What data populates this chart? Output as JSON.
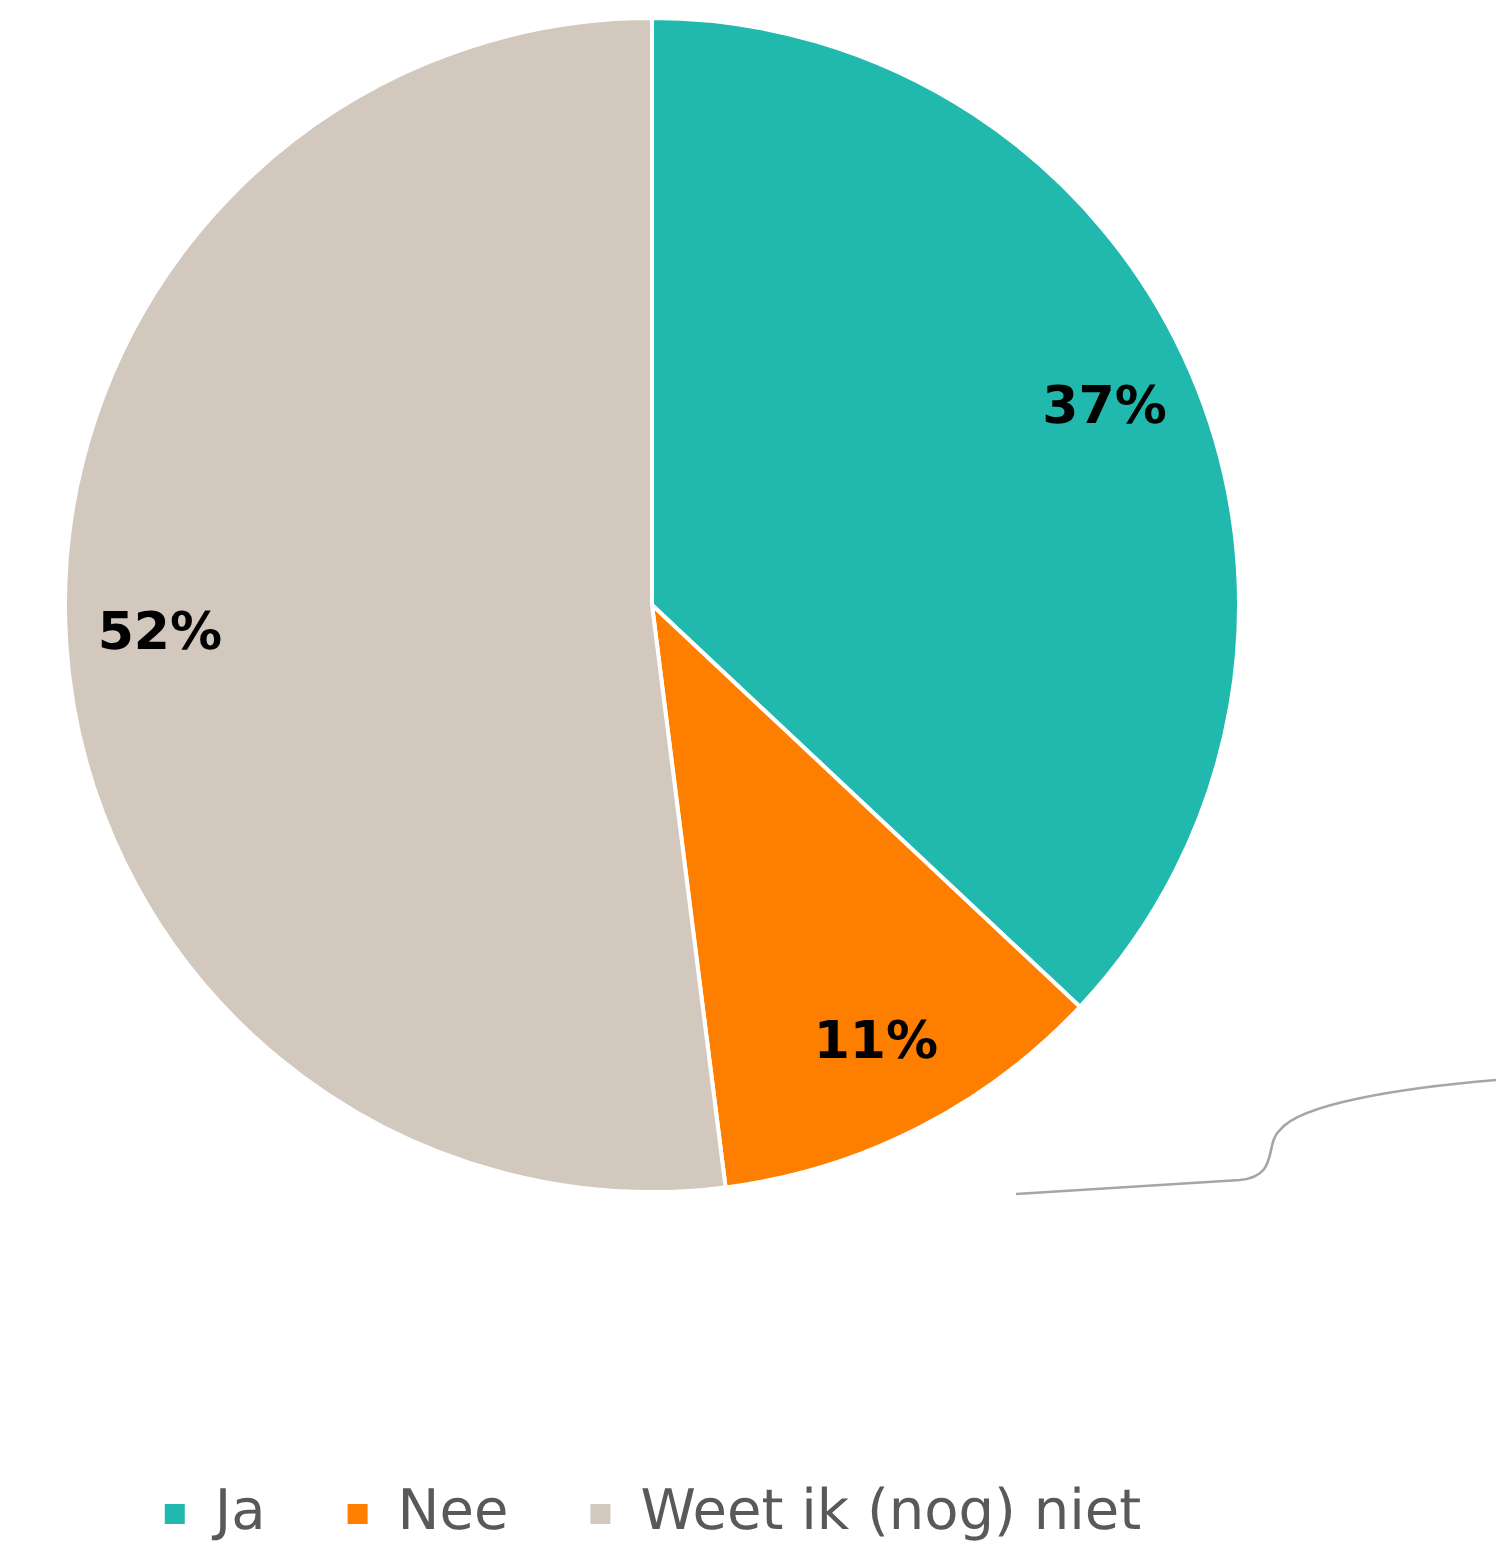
{
  "chart_data": {
    "type": "pie",
    "categories": [
      "Ja",
      "Nee",
      "Weet ik (nog) niet"
    ],
    "values": [
      37,
      11,
      52
    ],
    "colors": [
      "#21b9ae",
      "#fe7f00",
      "#d3c8bd"
    ],
    "value_labels": [
      "37%",
      "11%",
      "52%"
    ],
    "legend": "bottom"
  }
}
